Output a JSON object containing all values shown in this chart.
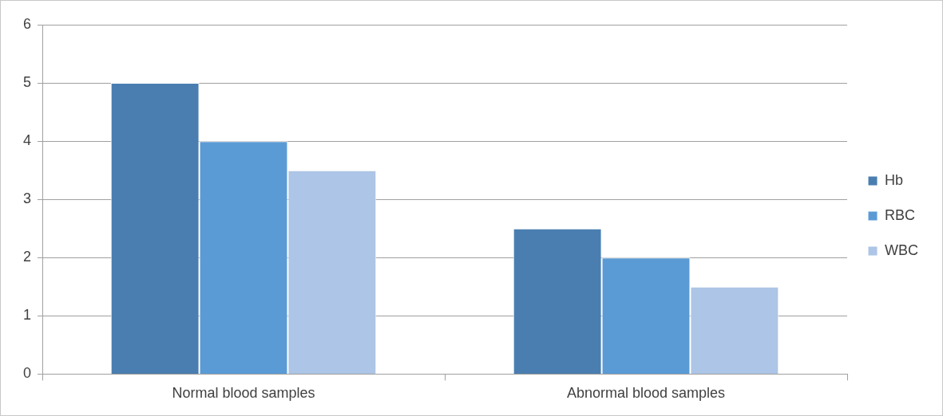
{
  "chart_data": {
    "type": "bar",
    "categories": [
      "Normal blood samples",
      "Abnormal blood samples"
    ],
    "series": [
      {
        "name": "Hb",
        "color": "#4a7eb0",
        "values": [
          5,
          2.5
        ]
      },
      {
        "name": "RBC",
        "color": "#5b9bd5",
        "values": [
          4,
          2
        ]
      },
      {
        "name": "WBC",
        "color": "#adc5e6",
        "values": [
          3.5,
          1.5
        ]
      }
    ],
    "ylim": [
      0,
      6
    ],
    "yticks": [
      0,
      1,
      2,
      3,
      4,
      5,
      6
    ],
    "grid": "y",
    "legend": "right"
  }
}
